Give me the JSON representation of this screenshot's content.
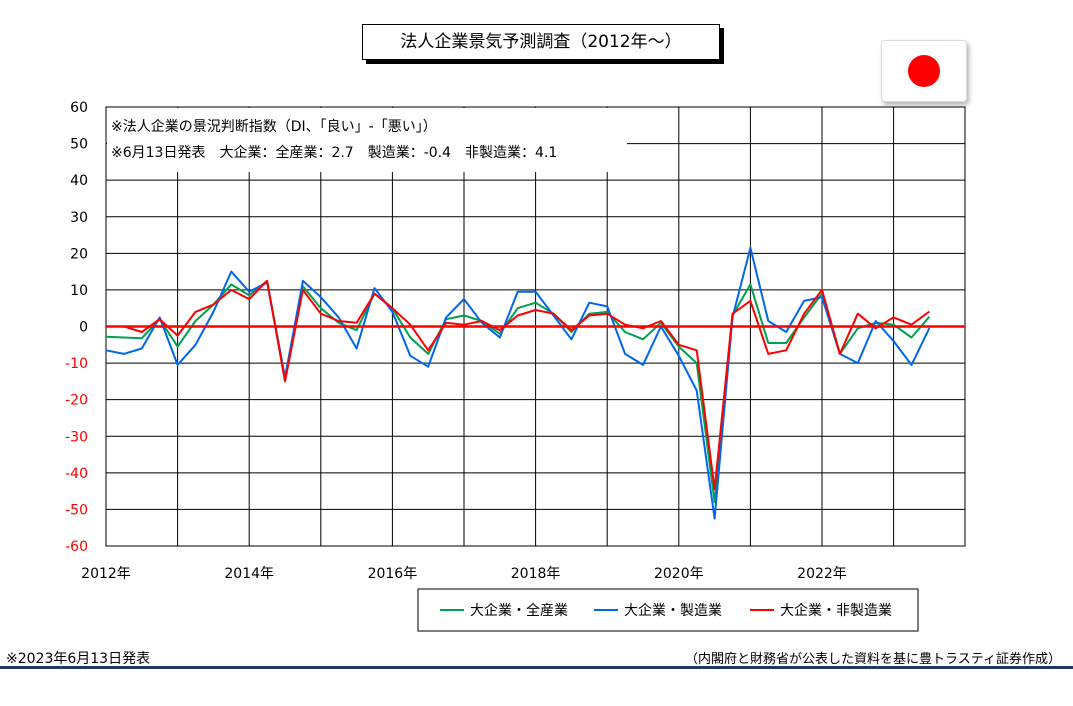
{
  "header": {
    "title": "法人企業景気予測調査（2012年～）"
  },
  "flag": {
    "icon": "japan-flag-icon",
    "color": "#ff0000"
  },
  "footer": {
    "left_note": "※2023年6月13日発表",
    "right_note": "（内閣府と財務省が公表した資料を基に豊トラスティ証券作成）"
  },
  "chart_data": {
    "type": "line",
    "title": "法人企業景気予測調査（2012年～）",
    "annotations": [
      "※法人企業の景況判断指数（DI、「良い」-「悪い」）",
      "※6月13日発表　大企業：全産業：2.7　製造業：-0.4　非製造業：4.1"
    ],
    "x_tick_labels": [
      "2012年",
      "2014年",
      "2016年",
      "2018年",
      "2020年",
      "2022年"
    ],
    "ylim": [
      -60,
      60
    ],
    "y_ticks": [
      60,
      50,
      40,
      30,
      20,
      10,
      0,
      -10,
      -20,
      -30,
      -40,
      -50,
      -60
    ],
    "grid": true,
    "legend_position": "bottom",
    "zero_line_color": "#ff0000",
    "x_start_year": 2012,
    "points_per_year": 4,
    "series": [
      {
        "name": "大企業・全産業",
        "color": "#00a050",
        "values": [
          -2.8,
          -3.0,
          -3.2,
          2.0,
          -5.5,
          1.5,
          6.0,
          11.5,
          8.5,
          12.5,
          -14.0,
          11.0,
          5.0,
          1.0,
          -1.0,
          9.0,
          5.0,
          -3.0,
          -7.5,
          2.0,
          3.0,
          1.5,
          -2.0,
          5.0,
          6.5,
          3.5,
          -1.5,
          3.5,
          4.0,
          -1.5,
          -3.5,
          1.0,
          -5.5,
          -10.0,
          -48.0,
          3.0,
          11.5,
          -4.5,
          -4.5,
          2.5,
          9.0,
          -7.5,
          -0.5,
          1.0,
          0.5,
          -3.0,
          2.7
        ]
      },
      {
        "name": "大企業・製造業",
        "color": "#0066ee",
        "values": [
          -6.5,
          -7.5,
          -6.0,
          2.5,
          -10.5,
          -5.0,
          4.0,
          15.0,
          9.5,
          12.0,
          -14.0,
          12.5,
          8.0,
          2.5,
          -6.0,
          10.5,
          4.0,
          -8.0,
          -11.0,
          2.5,
          7.5,
          1.0,
          -3.0,
          9.5,
          9.5,
          3.0,
          -3.5,
          6.5,
          5.5,
          -7.5,
          -10.5,
          0.0,
          -8.0,
          -17.5,
          -52.5,
          2.5,
          21.5,
          1.5,
          -1.5,
          7.0,
          8.0,
          -7.5,
          -10.0,
          1.5,
          -4.0,
          -10.5,
          -0.4
        ]
      },
      {
        "name": "大企業・非製造業",
        "color": "#ff0000",
        "values": [
          0.0,
          0.0,
          -1.5,
          2.0,
          -2.5,
          4.0,
          6.0,
          10.0,
          7.5,
          12.5,
          -15.0,
          10.0,
          3.5,
          1.5,
          1.0,
          9.0,
          5.0,
          0.5,
          -6.5,
          1.0,
          0.5,
          1.5,
          -1.0,
          3.0,
          4.5,
          3.5,
          -1.0,
          3.0,
          3.5,
          0.5,
          -0.5,
          1.5,
          -5.0,
          -6.5,
          -44.5,
          3.5,
          7.0,
          -7.5,
          -6.5,
          3.5,
          10.0,
          -7.5,
          3.5,
          -0.5,
          2.5,
          0.5,
          4.1
        ]
      }
    ]
  }
}
